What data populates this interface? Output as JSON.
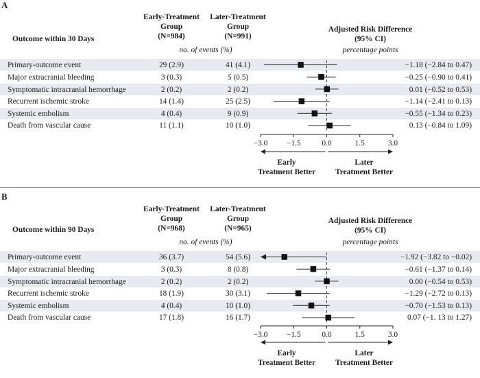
{
  "chart_data": [
    {
      "type": "forest",
      "panel": "A",
      "outcome_header": "Outcome within 30 Days",
      "group1_header": [
        "Early-Treatment",
        "Group",
        "(N=984)"
      ],
      "group2_header": [
        "Later-Treatment",
        "Group",
        "(N=991)"
      ],
      "events_subheader": "no. of events (%)",
      "effect_header": [
        "Adjusted Risk Difference",
        "(95% CI)"
      ],
      "effect_subheader": "percentage points",
      "rows": [
        {
          "label": "Primary-outcome event",
          "early": "29 (2.9)",
          "later": "41 (4.1)",
          "ci_text": "−1.18 (−2.84 to 0.47)",
          "est": -1.18,
          "lo": -2.84,
          "hi": 0.47
        },
        {
          "label": "Major extracranial bleeding",
          "early": "3 (0.3)",
          "later": "5 (0.5)",
          "ci_text": "−0.25 (−0.90 to 0.41)",
          "est": -0.25,
          "lo": -0.9,
          "hi": 0.41
        },
        {
          "label": "Symptomatic intracranial hemorrhage",
          "early": "2 (0.2)",
          "later": "2 (0.2)",
          "ci_text": "0.01 (−0.52 to 0.53)",
          "est": 0.01,
          "lo": -0.52,
          "hi": 0.53
        },
        {
          "label": "Recurrent ischemic stroke",
          "early": "14 (1.4)",
          "later": "25 (2.5)",
          "ci_text": "−1.14 (−2.41 to 0.13)",
          "est": -1.14,
          "lo": -2.41,
          "hi": 0.13
        },
        {
          "label": "Systemic embolism",
          "early": "4 (0.4)",
          "later": "9 (0.9)",
          "ci_text": "−0.55 (−1.34 to 0.23)",
          "est": -0.55,
          "lo": -1.34,
          "hi": 0.23
        },
        {
          "label": "Death from vascular cause",
          "early": "11 (1.1)",
          "later": "10 (1.0)",
          "ci_text": "0.13 (−0.84 to 1.09)",
          "est": 0.13,
          "lo": -0.84,
          "hi": 1.09
        }
      ],
      "xlim": [
        -3.0,
        3.0
      ],
      "ticks": [
        "−3.0",
        "−1.5",
        "0.0",
        "1.5",
        "3.0"
      ],
      "tick_values": [
        -3.0,
        -1.5,
        0.0,
        1.5,
        3.0
      ],
      "left_label": [
        "Early",
        "Treatment Better"
      ],
      "right_label": [
        "Later",
        "Treatment Better"
      ]
    },
    {
      "type": "forest",
      "panel": "B",
      "outcome_header": "Outcome within 90 Days",
      "group1_header": [
        "Early-Treatment",
        "Group",
        "(N=968)"
      ],
      "group2_header": [
        "Later-Treatment",
        "Group",
        "(N=965)"
      ],
      "events_subheader": "no. of events (%)",
      "effect_header": [
        "Adjusted Risk Difference",
        "(95% CI)"
      ],
      "effect_subheader": "percentage points",
      "rows": [
        {
          "label": "Primary-outcome event",
          "early": "36 (3.7)",
          "later": "54 (5.6)",
          "ci_text": "−1.92 (−3.82 to −0.02)",
          "est": -1.92,
          "lo": -3.82,
          "hi": -0.02
        },
        {
          "label": "Major extracranial bleeding",
          "early": "3 (0.3)",
          "later": "8 (0.8)",
          "ci_text": "−0.61 (−1.37 to 0.14)",
          "est": -0.61,
          "lo": -1.37,
          "hi": 0.14
        },
        {
          "label": "Symptomatic intracranial hemorrhage",
          "early": "2 (0.2)",
          "later": "2 (0.2)",
          "ci_text": "0.00 (−0.54 to 0.53)",
          "est": 0.0,
          "lo": -0.54,
          "hi": 0.53
        },
        {
          "label": "Recurrent ischemic stroke",
          "early": "18 (1.9)",
          "later": "30 (3.1)",
          "ci_text": "−1.29 (−2.72 to 0.13)",
          "est": -1.29,
          "lo": -2.72,
          "hi": 0.13
        },
        {
          "label": "Systemic embolism",
          "early": "4 (0.4)",
          "later": "10 (1.0)",
          "ci_text": "−0.70 (−1.53 to 0.13)",
          "est": -0.7,
          "lo": -1.53,
          "hi": 0.13
        },
        {
          "label": "Death from vascular cause",
          "early": "17 (1.8)",
          "later": "16 (1.7)",
          "ci_text": "0.07 (−1. 13 to 1.27)",
          "est": 0.07,
          "lo": -1.13,
          "hi": 1.27
        }
      ],
      "xlim": [
        -3.0,
        3.0
      ],
      "ticks": [
        "−3.0",
        "−1.5",
        "0.0",
        "1.5",
        "3.0"
      ],
      "tick_values": [
        -3.0,
        -1.5,
        0.0,
        1.5,
        3.0
      ],
      "left_label": [
        "Early",
        "Treatment Better"
      ],
      "right_label": [
        "Later",
        "Treatment Better"
      ]
    }
  ]
}
